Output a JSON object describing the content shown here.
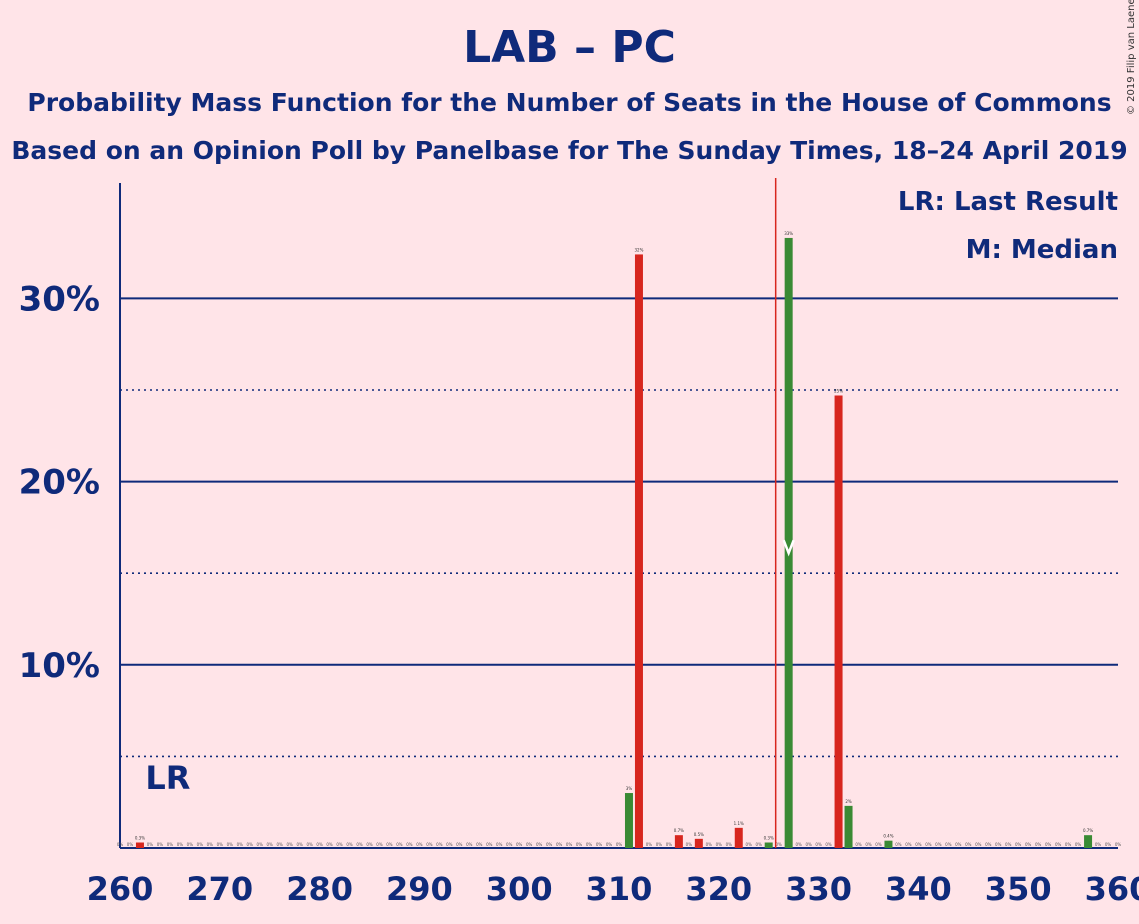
{
  "title": "LAB – PC",
  "subtitle1": "Probability Mass Function for the Number of Seats in the House of Commons",
  "subtitle2": "Based on an Opinion Poll by Panelbase for The Sunday Times, 18–24 April 2019",
  "copyright": "© 2019 Filip van Laenen",
  "legend": {
    "last_result": "LR: Last Result",
    "median": "M: Median"
  },
  "markers": {
    "last_result_label": "LR",
    "last_result_x": 265,
    "median_label": "M",
    "median_x": 327,
    "majority_line_x": 326
  },
  "colors": {
    "background": "#ffe4e8",
    "text": "#0f2a7a",
    "red_bar": "#d7261e",
    "green_bar": "#3a8a34",
    "majority_line": "#d7261e"
  },
  "chart_data": {
    "type": "bar",
    "xlim": [
      260,
      360
    ],
    "ylim": [
      0,
      36
    ],
    "x_ticks": [
      {
        "value": 260,
        "label": "260"
      },
      {
        "value": 270,
        "label": "270"
      },
      {
        "value": 280,
        "label": "280"
      },
      {
        "value": 290,
        "label": "290"
      },
      {
        "value": 300,
        "label": "300"
      },
      {
        "value": 310,
        "label": "310"
      },
      {
        "value": 320,
        "label": "320"
      },
      {
        "value": 330,
        "label": "330"
      },
      {
        "value": 340,
        "label": "340"
      },
      {
        "value": 350,
        "label": "350"
      },
      {
        "value": 360,
        "label": "360"
      }
    ],
    "y_ticks": [
      {
        "value": 10,
        "label": "10%"
      },
      {
        "value": 20,
        "label": "20%"
      },
      {
        "value": 30,
        "label": "30%"
      }
    ],
    "minor_gridlines": [
      5,
      15,
      25
    ],
    "bars": [
      {
        "x": 262,
        "value": 0.3,
        "label": "0.3%",
        "color": "red"
      },
      {
        "x": 311,
        "value": 3.0,
        "label": "3%",
        "color": "green"
      },
      {
        "x": 312,
        "value": 32.4,
        "label": "32%",
        "color": "red"
      },
      {
        "x": 316,
        "value": 0.7,
        "label": "0.7%",
        "color": "red"
      },
      {
        "x": 318,
        "value": 0.5,
        "label": "0.5%",
        "color": "red"
      },
      {
        "x": 322,
        "value": 1.1,
        "label": "1.1%",
        "color": "red"
      },
      {
        "x": 325,
        "value": 0.3,
        "label": "0.3%",
        "color": "green"
      },
      {
        "x": 327,
        "value": 33.3,
        "label": "33%",
        "color": "green"
      },
      {
        "x": 332,
        "value": 24.7,
        "label": "25%",
        "color": "red"
      },
      {
        "x": 333,
        "value": 2.3,
        "label": "2%",
        "color": "green"
      },
      {
        "x": 337,
        "value": 0.4,
        "label": "0.4%",
        "color": "green"
      },
      {
        "x": 357,
        "value": 0.7,
        "label": "0.7%",
        "color": "green"
      }
    ],
    "zero_label": "0%"
  }
}
